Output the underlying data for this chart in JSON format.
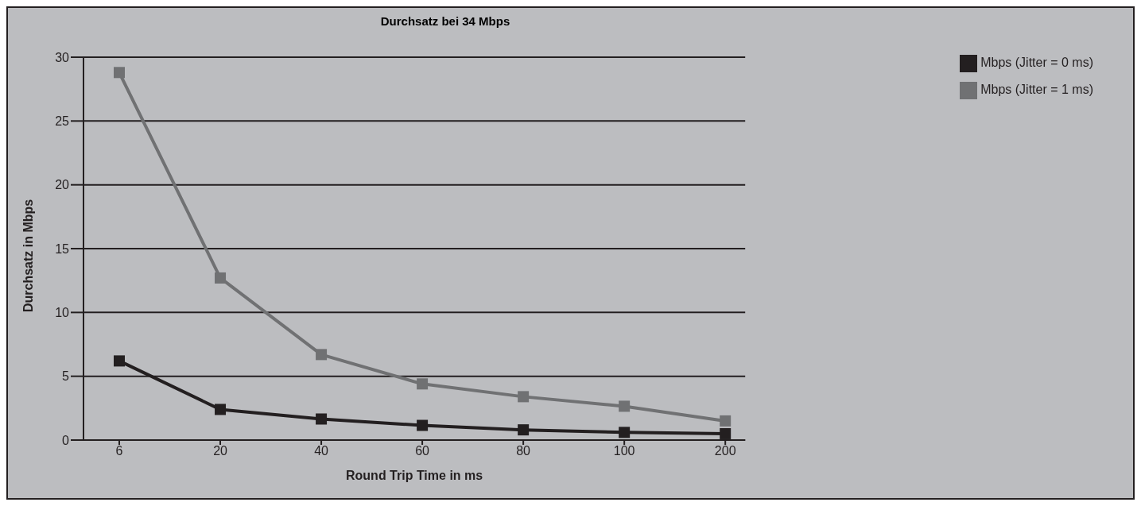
{
  "chart_data": {
    "type": "line",
    "title": "Durchsatz bei 34 Mbps",
    "xlabel": "Round Trip Time in ms",
    "ylabel": "Durchsatz in Mbps",
    "categories": [
      "6",
      "20",
      "40",
      "60",
      "80",
      "100",
      "200"
    ],
    "series": [
      {
        "name": "Mbps (Jitter = 0 ms)",
        "color": "#231f20",
        "values": [
          6.2,
          2.4,
          1.65,
          1.15,
          0.8,
          0.6,
          0.5
        ]
      },
      {
        "name": "Mbps (Jitter = 1 ms)",
        "color": "#707173",
        "values": [
          28.8,
          12.7,
          6.7,
          4.4,
          3.4,
          2.65,
          1.5
        ]
      }
    ],
    "ylim": [
      0,
      30
    ],
    "yticks": [
      0,
      5,
      10,
      15,
      20,
      25,
      30
    ],
    "grid": "y",
    "legend": "right",
    "marker": "square",
    "line_style": "solid"
  }
}
